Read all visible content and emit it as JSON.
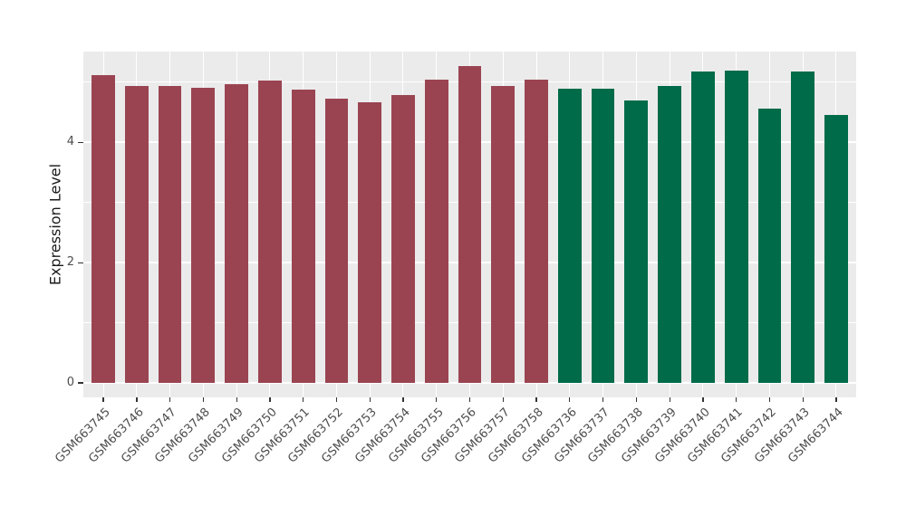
{
  "chart_data": {
    "type": "bar",
    "title": "",
    "xlabel": "",
    "ylabel": "Expression Level",
    "ylim": [
      0,
      5.51
    ],
    "yticks_labeled": [
      "0",
      "2",
      "4"
    ],
    "ytick_values_major": [
      0,
      2,
      4
    ],
    "ytick_values_minor": [
      1,
      3,
      5
    ],
    "grid": "white gridlines on grey panel, vertical gridline at each category",
    "legend_position": "none",
    "categories": [
      "GSM663745",
      "GSM663746",
      "GSM663747",
      "GSM663748",
      "GSM663749",
      "GSM663750",
      "GSM663751",
      "GSM663752",
      "GSM663753",
      "GSM663754",
      "GSM663755",
      "GSM663756",
      "GSM663757",
      "GSM663758",
      "GSM663736",
      "GSM663737",
      "GSM663738",
      "GSM663739",
      "GSM663740",
      "GSM663741",
      "GSM663742",
      "GSM663743",
      "GSM663744"
    ],
    "values": [
      5.11,
      4.94,
      4.93,
      4.91,
      4.97,
      5.03,
      4.88,
      4.72,
      4.67,
      4.79,
      5.04,
      5.26,
      4.94,
      5.04,
      4.89,
      4.89,
      4.7,
      4.93,
      5.18,
      5.19,
      4.56,
      5.17,
      4.46
    ],
    "groups": [
      0,
      0,
      0,
      0,
      0,
      0,
      0,
      0,
      0,
      0,
      0,
      0,
      0,
      0,
      1,
      1,
      1,
      1,
      1,
      1,
      1,
      1,
      1
    ],
    "series": [
      {
        "name": "group-red",
        "color": "#9A4452",
        "categories": [
          "GSM663745",
          "GSM663746",
          "GSM663747",
          "GSM663748",
          "GSM663749",
          "GSM663750",
          "GSM663751",
          "GSM663752",
          "GSM663753",
          "GSM663754",
          "GSM663755",
          "GSM663756",
          "GSM663757",
          "GSM663758"
        ],
        "values": [
          5.11,
          4.94,
          4.93,
          4.91,
          4.97,
          5.03,
          4.88,
          4.72,
          4.67,
          4.79,
          5.04,
          5.26,
          4.94,
          5.04
        ]
      },
      {
        "name": "group-green",
        "color": "#006B49",
        "categories": [
          "GSM663736",
          "GSM663737",
          "GSM663738",
          "GSM663739",
          "GSM663740",
          "GSM663741",
          "GSM663742",
          "GSM663743",
          "GSM663744"
        ],
        "values": [
          4.89,
          4.89,
          4.7,
          4.93,
          5.18,
          5.19,
          4.56,
          5.17,
          4.46
        ]
      }
    ]
  },
  "colors": {
    "page_bg": "#FFFFFF",
    "panel_bg": "#EBEBEB",
    "grid": "#FFFFFF",
    "bar_group_colors": [
      "#9A4452",
      "#006B49"
    ],
    "tick_text": "#4D4D4D",
    "axis_title_text": "#1A1A1A",
    "tick_mark": "#333333"
  }
}
